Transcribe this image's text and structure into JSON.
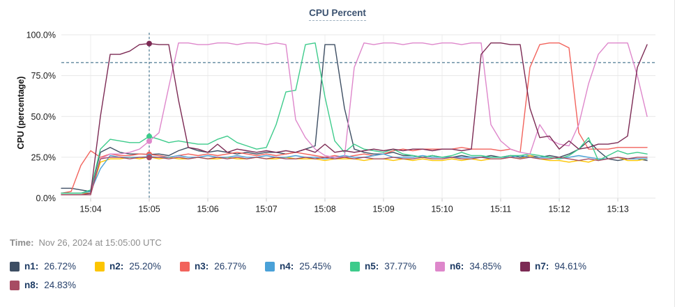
{
  "time_row": {
    "label": "Time:",
    "value": "Nov 26, 2024 at 15:05:00 UTC"
  },
  "chart_data": {
    "type": "line",
    "title": "CPU Percent",
    "ylabel": "CPU (percentage)",
    "ylim": [
      0,
      100
    ],
    "y_ticks": [
      {
        "label": "100.0%",
        "value": 100
      },
      {
        "label": "75.0%",
        "value": 75
      },
      {
        "label": "50.0%",
        "value": 50
      },
      {
        "label": "25.0%",
        "value": 25
      },
      {
        "label": "0.0%",
        "value": 0
      }
    ],
    "x_ticks": [
      "15:04",
      "15:05",
      "15:06",
      "15:07",
      "15:08",
      "15:09",
      "15:10",
      "15:11",
      "15:12",
      "15:13"
    ],
    "x_start": "15:03:30",
    "x_step_seconds": 10,
    "grid": true,
    "legend_position": "bottom",
    "threshold": {
      "value": 83,
      "style": "dashed",
      "color": "#4d7a93"
    },
    "crosshair": {
      "index": 9,
      "time_label": "15:05",
      "color": "#4d7a93"
    },
    "series": [
      {
        "name": "n1",
        "color": "#3d4e63",
        "value_label": "26.72%",
        "values": [
          6,
          6,
          5,
          4,
          28,
          31,
          28,
          27,
          27,
          26.72,
          27,
          26,
          29,
          31,
          29,
          28,
          29,
          28,
          27,
          28,
          27,
          28,
          28,
          27,
          28,
          30,
          32,
          94,
          94,
          55,
          30,
          28,
          27,
          27,
          28,
          26,
          26,
          25,
          26,
          25,
          25,
          26,
          25,
          25,
          26,
          25,
          26,
          25,
          26,
          25,
          26,
          25,
          27,
          30,
          35,
          29,
          24,
          23,
          24,
          24,
          23
        ]
      },
      {
        "name": "n2",
        "color": "#fcc500",
        "value_label": "25.20%",
        "values": [
          3,
          3,
          3,
          3,
          22,
          24,
          24,
          25,
          24,
          25.2,
          24,
          25,
          24,
          24,
          25,
          24,
          24,
          25,
          24,
          24,
          25,
          24,
          24,
          25,
          24,
          24,
          24,
          23,
          24,
          24,
          24,
          23,
          24,
          24,
          23,
          24,
          23,
          24,
          23,
          23,
          24,
          23,
          24,
          23,
          24,
          24,
          25,
          24,
          26,
          24,
          23,
          23,
          22,
          23,
          22,
          24,
          24,
          25,
          23,
          23,
          24
        ]
      },
      {
        "name": "n3",
        "color": "#f2635c",
        "value_label": "26.77%",
        "values": [
          3,
          4,
          20,
          29,
          25,
          27,
          26,
          26,
          27,
          26.77,
          26,
          25,
          26,
          27,
          26,
          27,
          26,
          27,
          28,
          27,
          26,
          27,
          26,
          27,
          28,
          27,
          26,
          25,
          26,
          25,
          26,
          27,
          26,
          27,
          29,
          30,
          29,
          30,
          30,
          30,
          30,
          31,
          30,
          30,
          30,
          29,
          30,
          28,
          80,
          94,
          95,
          95,
          92,
          40,
          30,
          30,
          30,
          31,
          31,
          31,
          31
        ]
      },
      {
        "name": "n4",
        "color": "#4aa1d8",
        "value_label": "25.45%",
        "values": [
          3,
          3,
          3,
          4,
          18,
          26,
          25,
          25,
          25,
          25.45,
          25,
          25,
          26,
          25,
          25,
          26,
          25,
          25,
          26,
          25,
          25,
          26,
          25,
          25,
          26,
          25,
          25,
          24,
          25,
          26,
          25,
          25,
          26,
          27,
          25,
          25,
          25,
          26,
          25,
          25,
          25,
          25,
          25,
          25,
          25,
          25,
          25,
          26,
          25,
          25,
          25,
          24,
          25,
          26,
          25,
          24,
          24,
          25,
          24,
          24,
          24
        ]
      },
      {
        "name": "n5",
        "color": "#3dcb8b",
        "value_label": "37.77%",
        "values": [
          3,
          3,
          3,
          5,
          30,
          36,
          35,
          34,
          34,
          37.77,
          36,
          34,
          35,
          34,
          33,
          33,
          36,
          38,
          34,
          32,
          30,
          31,
          45,
          65,
          66,
          94,
          95,
          62,
          35,
          28,
          33,
          30,
          29,
          28,
          30,
          27,
          26,
          25,
          26,
          25,
          26,
          28,
          26,
          26,
          25,
          25,
          26,
          26,
          27,
          26,
          25,
          24,
          26,
          30,
          37,
          23,
          26,
          29,
          27,
          28,
          27
        ]
      },
      {
        "name": "n6",
        "color": "#de87cb",
        "value_label": "34.85%",
        "values": [
          2,
          2,
          2,
          3,
          24,
          27,
          27,
          28,
          30,
          34.85,
          40,
          68,
          95,
          95,
          94,
          94,
          95,
          95,
          94,
          95,
          95,
          94,
          95,
          94,
          48,
          37,
          30,
          26,
          25,
          25,
          80,
          95,
          94,
          95,
          95,
          94,
          95,
          95,
          94,
          95,
          95,
          94,
          95,
          95,
          45,
          35,
          30,
          28,
          27,
          45,
          36,
          33,
          32,
          45,
          70,
          88,
          95,
          95,
          95,
          75,
          50
        ]
      },
      {
        "name": "n7",
        "color": "#7c2a54",
        "value_label": "94.61%",
        "values": [
          2,
          2,
          2,
          3,
          50,
          88,
          88,
          90,
          94,
          94.61,
          94,
          94,
          60,
          31,
          30,
          28,
          33,
          28,
          30,
          29,
          28,
          29,
          28,
          29,
          28,
          30,
          28,
          33,
          28,
          29,
          28,
          29,
          30,
          29,
          30,
          29,
          30,
          30,
          29,
          30,
          30,
          29,
          30,
          88,
          95,
          95,
          94,
          94,
          55,
          37,
          38,
          30,
          35,
          30,
          31,
          33,
          33,
          34,
          38,
          80,
          94
        ]
      },
      {
        "name": "n8",
        "color": "#a74c63",
        "value_label": "24.83%",
        "values": [
          2,
          2,
          2,
          2,
          24,
          25,
          25,
          24,
          25,
          24.83,
          25,
          24,
          25,
          24,
          25,
          24,
          25,
          24,
          25,
          24,
          25,
          24,
          25,
          24,
          24,
          25,
          24,
          25,
          24,
          25,
          24,
          25,
          24,
          24,
          25,
          24,
          24,
          25,
          24,
          24,
          25,
          24,
          24,
          25,
          24,
          24,
          25,
          24,
          25,
          24,
          24,
          25,
          24,
          23,
          24,
          23,
          24,
          25,
          24,
          25,
          25
        ]
      }
    ]
  }
}
